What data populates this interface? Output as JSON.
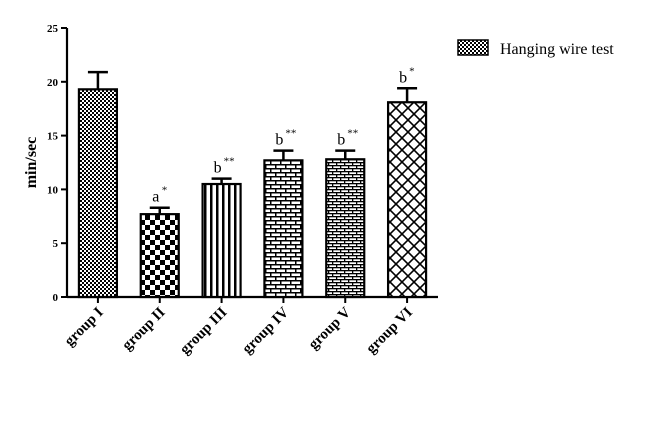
{
  "chart_data": {
    "type": "bar",
    "categories": [
      "group I",
      "group II",
      "group III",
      "group IV",
      "group V",
      "group VI"
    ],
    "series": [
      {
        "name": "Hanging wire test",
        "values": [
          19.3,
          7.7,
          10.5,
          12.7,
          12.8,
          18.1
        ],
        "errors": [
          1.6,
          0.6,
          0.5,
          0.9,
          0.8,
          1.3
        ]
      }
    ],
    "annotations": [
      {
        "letter": "",
        "stars": ""
      },
      {
        "letter": "a",
        "stars": "*"
      },
      {
        "letter": "b",
        "stars": "**"
      },
      {
        "letter": "b",
        "stars": "**"
      },
      {
        "letter": "b",
        "stars": "**"
      },
      {
        "letter": "b",
        "stars": "*"
      }
    ],
    "patterns": [
      "checker-fine",
      "checker-large",
      "vertical-stripes",
      "brick",
      "brick-fine",
      "diagonal-cross"
    ],
    "xlabel": "",
    "ylabel": "min/sec",
    "ylim": [
      0,
      25
    ],
    "yticks": [
      0,
      5,
      10,
      15,
      20,
      25
    ],
    "grid": false,
    "legend_position": "top-right"
  }
}
